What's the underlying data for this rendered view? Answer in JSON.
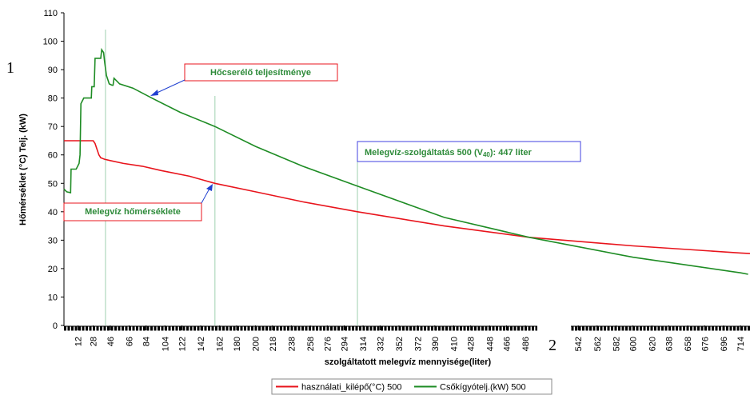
{
  "chart_data": {
    "type": "line",
    "ylabel": "Hőmérséklet (°C) Telj. (kW)",
    "xlabel": "szolgáltatott melegvíz mennyisége(liter)",
    "marker_left": "1",
    "marker_bottom": "2",
    "xlim": [
      -3,
      724
    ],
    "ylim": [
      0,
      110
    ],
    "yticks": [
      0,
      10,
      20,
      30,
      40,
      50,
      60,
      70,
      80,
      90,
      100,
      110
    ],
    "xticks": [
      12,
      28,
      46,
      66,
      84,
      104,
      122,
      142,
      162,
      180,
      200,
      218,
      238,
      258,
      276,
      294,
      314,
      332,
      352,
      372,
      390,
      410,
      428,
      448,
      466,
      486,
      542,
      562,
      582,
      600,
      620,
      638,
      658,
      676,
      696,
      714
    ],
    "vlines": [
      41,
      157,
      308
    ],
    "series": [
      {
        "name": "használati_kilépő(°C) 500",
        "color": "#e8141c",
        "x": [
          -3,
          0,
          10,
          20,
          28,
          30,
          32,
          34,
          36,
          40,
          46,
          60,
          80,
          100,
          130,
          157,
          200,
          250,
          308,
          400,
          490,
          600,
          714,
          724
        ],
        "values": [
          65,
          65,
          65,
          65,
          65,
          64,
          62,
          60,
          59,
          58.5,
          58,
          57,
          56,
          54.5,
          52.5,
          50,
          47,
          43.5,
          40,
          35,
          31,
          28,
          25.5,
          25.3
        ]
      },
      {
        "name": "Csőkígyótelj.(kW) 500",
        "color": "#1e8c24",
        "x": [
          -3,
          0,
          4,
          4.5,
          10,
          13,
          14,
          15,
          18,
          22,
          26,
          26.5,
          29,
          30,
          33,
          36,
          37,
          39,
          40,
          42,
          45,
          48,
          49,
          50,
          56,
          70,
          90,
          120,
          157,
          200,
          250,
          308,
          400,
          490,
          600,
          714,
          722
        ],
        "values": [
          48,
          47,
          46.7,
          55,
          55,
          57,
          60,
          78,
          80,
          80,
          80,
          84,
          84,
          94,
          94,
          94,
          97,
          96,
          93,
          88,
          85,
          84.5,
          84.5,
          87,
          85,
          83.5,
          80,
          75,
          70,
          63,
          56,
          49,
          38,
          31,
          24,
          18.5,
          18
        ]
      }
    ],
    "annotations": [
      {
        "text": "Hőcserélő teljesítménye"
      },
      {
        "parts": [
          "Melegvíz-szolgáltatás 500 (V",
          "40",
          "): 447 liter"
        ]
      },
      {
        "text": "Melegvíz hőmérséklete"
      }
    ]
  }
}
